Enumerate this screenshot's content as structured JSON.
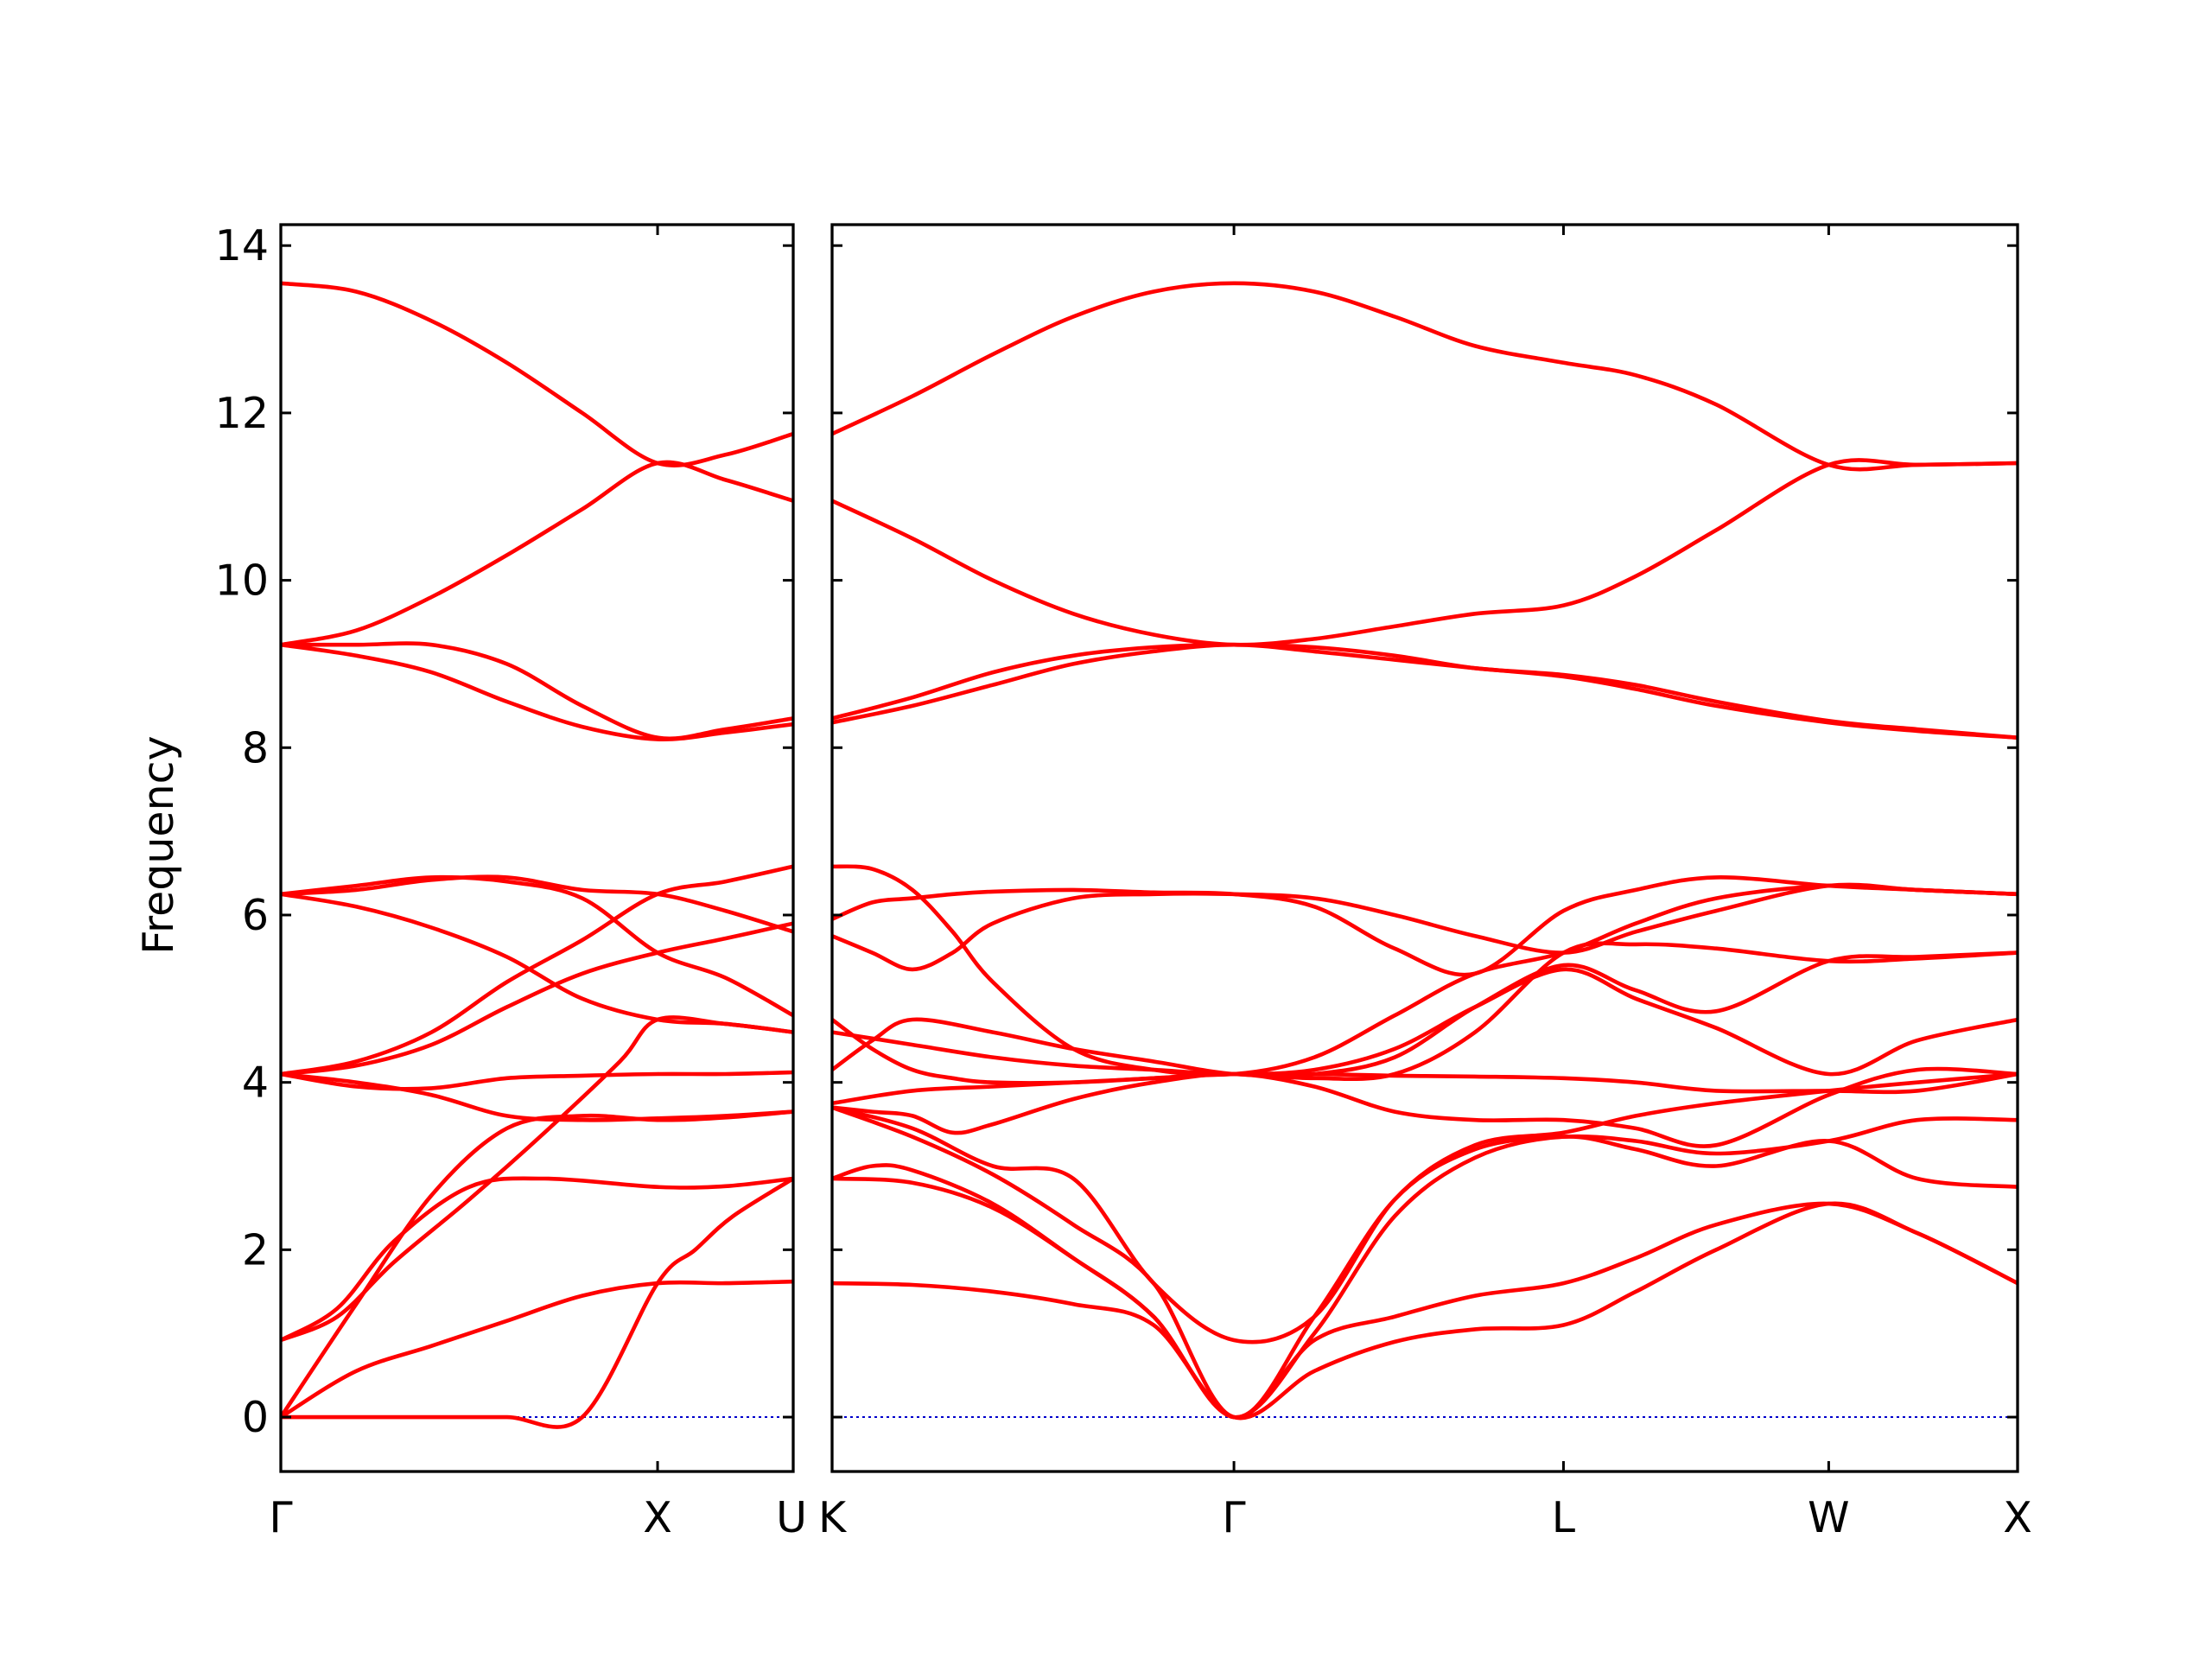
{
  "chart_data": {
    "type": "line",
    "title": "",
    "xlabel": "",
    "ylabel": "Frequency",
    "ylim": [
      -0.65,
      14.25
    ],
    "yticks": [
      0,
      2,
      4,
      6,
      8,
      10,
      12,
      14
    ],
    "grid": false,
    "legend": "none",
    "colors": {
      "bands": "#ff0000",
      "zero_line": "#0000cc",
      "frame": "#000000"
    },
    "panels": [
      {
        "x_range": [
          0,
          1.36
        ],
        "high_symmetry_points": [
          {
            "label": "Γ",
            "x": 0
          },
          {
            "label": "X",
            "x": 1.0
          },
          {
            "label": "U",
            "x": 1.36
          }
        ],
        "bands": [
          {
            "x": [
              0,
              0.2,
              0.4,
              0.6,
              0.8,
              1.0,
              1.18,
              1.36
            ],
            "y": [
              0,
              0.55,
              0.85,
              1.15,
              1.45,
              1.6,
              1.6,
              1.62
            ]
          },
          {
            "x": [
              0,
              0.2,
              0.4,
              0.6,
              0.8,
              1.0,
              1.18,
              1.36
            ],
            "y": [
              0,
              1.35,
              2.65,
              3.45,
              3.6,
              3.55,
              3.58,
              3.65
            ]
          },
          {
            "x": [
              0,
              0.15,
              0.3,
              0.5,
              0.7,
              0.9,
              1.0,
              1.18,
              1.36
            ],
            "y": [
              0.92,
              1.2,
              1.85,
              2.6,
              3.4,
              4.25,
              4.75,
              4.7,
              4.6
            ]
          },
          {
            "x": [
              0,
              0.15,
              0.3,
              0.5,
              0.7,
              1.0,
              1.18,
              1.36
            ],
            "y": [
              0.92,
              1.3,
              2.1,
              2.75,
              2.85,
              2.75,
              2.76,
              2.85
            ]
          },
          {
            "x": [
              0,
              0.2,
              0.4,
              0.6,
              0.8,
              1.0,
              1.1,
              1.2,
              1.36
            ],
            "y": [
              0,
              0,
              0,
              0,
              0,
              1.6,
              2.0,
              2.4,
              2.85
            ]
          },
          {
            "x": [
              0,
              0.2,
              0.4,
              0.6,
              0.8,
              1.0,
              1.18,
              1.36
            ],
            "y": [
              4.1,
              4.0,
              3.85,
              3.6,
              3.55,
              3.57,
              3.6,
              3.65
            ]
          },
          {
            "x": [
              0,
              0.2,
              0.4,
              0.6,
              0.8,
              1.0,
              1.18,
              1.36
            ],
            "y": [
              4.1,
              3.95,
              3.93,
              4.05,
              4.08,
              4.1,
              4.1,
              4.12
            ]
          },
          {
            "x": [
              0,
              0.2,
              0.4,
              0.6,
              0.8,
              1.0,
              1.18,
              1.36
            ],
            "y": [
              4.1,
              4.25,
              4.6,
              5.2,
              5.7,
              6.25,
              6.4,
              6.58
            ]
          },
          {
            "x": [
              0,
              0.2,
              0.4,
              0.6,
              0.8,
              1.0,
              1.18,
              1.36
            ],
            "y": [
              4.1,
              4.2,
              4.45,
              4.9,
              5.3,
              5.55,
              5.72,
              5.9
            ]
          },
          {
            "x": [
              0,
              0.2,
              0.4,
              0.6,
              0.8,
              1.0,
              1.18,
              1.36
            ],
            "y": [
              6.25,
              6.1,
              5.85,
              5.5,
              5.0,
              4.75,
              4.7,
              4.6
            ]
          },
          {
            "x": [
              0,
              0.2,
              0.4,
              0.6,
              0.8,
              1.0,
              1.18,
              1.36
            ],
            "y": [
              6.25,
              6.35,
              6.45,
              6.4,
              6.2,
              5.55,
              5.25,
              4.8
            ]
          },
          {
            "x": [
              0,
              0.2,
              0.4,
              0.6,
              0.8,
              1.0,
              1.18,
              1.36
            ],
            "y": [
              6.25,
              6.3,
              6.42,
              6.45,
              6.3,
              6.25,
              6.05,
              5.8
            ]
          },
          {
            "x": [
              0,
              0.2,
              0.4,
              0.6,
              0.8,
              1.0,
              1.18,
              1.36
            ],
            "y": [
              9.23,
              9.1,
              8.9,
              8.55,
              8.25,
              8.1,
              8.18,
              8.28
            ]
          },
          {
            "x": [
              0,
              0.2,
              0.4,
              0.6,
              0.8,
              1.0,
              1.18,
              1.36
            ],
            "y": [
              9.23,
              9.4,
              9.8,
              10.3,
              10.85,
              11.4,
              11.2,
              10.95
            ]
          },
          {
            "x": [
              0,
              0.2,
              0.4,
              0.6,
              0.8,
              1.0,
              1.18,
              1.36
            ],
            "y": [
              9.23,
              9.23,
              9.23,
              9.0,
              8.5,
              8.12,
              8.22,
              8.35
            ]
          },
          {
            "x": [
              0,
              0.2,
              0.4,
              0.6,
              0.8,
              1.0,
              1.18,
              1.36
            ],
            "y": [
              13.55,
              13.45,
              13.1,
              12.6,
              12.0,
              11.4,
              11.5,
              11.75
            ]
          }
        ]
      },
      {
        "x_range": [
          0,
          2.95
        ],
        "high_symmetry_points": [
          {
            "label": "K",
            "x": 0
          },
          {
            "label": "Γ",
            "x": 1.0
          },
          {
            "label": "L",
            "x": 1.82
          },
          {
            "label": "W",
            "x": 2.48
          },
          {
            "label": "X",
            "x": 2.95
          }
        ],
        "bands": [
          {
            "x": [
              0,
              0.2,
              0.4,
              0.6,
              0.8,
              1.0,
              1.2,
              1.4,
              1.6,
              1.82,
              2.0,
              2.2,
              2.48,
              2.7,
              2.95
            ],
            "y": [
              1.6,
              1.58,
              1.5,
              1.35,
              1.1,
              0,
              0.55,
              0.9,
              1.05,
              1.1,
              1.5,
              2.0,
              2.55,
              2.2,
              1.6
            ]
          },
          {
            "x": [
              0,
              0.2,
              0.4,
              0.6,
              0.8,
              1.0,
              1.2,
              1.4,
              1.6,
              1.82,
              2.0,
              2.2,
              2.48,
              2.7,
              2.95
            ],
            "y": [
              2.85,
              2.8,
              2.5,
              1.9,
              1.2,
              0,
              0.92,
              1.2,
              1.45,
              1.6,
              1.9,
              2.3,
              2.55,
              2.2,
              1.6
            ]
          },
          {
            "x": [
              0,
              0.1,
              0.2,
              0.4,
              0.6,
              0.8,
              1.0,
              1.2,
              1.4,
              1.6,
              1.82,
              2.0,
              2.2,
              2.48,
              2.7,
              2.95
            ],
            "y": [
              2.85,
              3.0,
              2.95,
              2.55,
              1.9,
              1.2,
              0,
              1.0,
              2.4,
              3.1,
              3.35,
              3.2,
              3.0,
              3.3,
              2.85,
              2.75
            ]
          },
          {
            "x": [
              0,
              0.2,
              0.4,
              0.6,
              0.8,
              1.0,
              1.2,
              1.4,
              1.6,
              1.82,
              2.0,
              2.2,
              2.48,
              2.7,
              2.95
            ],
            "y": [
              3.7,
              3.35,
              2.9,
              2.3,
              1.6,
              0,
              1.2,
              2.6,
              3.2,
              3.35,
              3.3,
              3.15,
              3.3,
              3.55,
              3.55
            ]
          },
          {
            "x": [
              0,
              0.2,
              0.4,
              0.6,
              0.8,
              1.0,
              1.2,
              1.4,
              1.6,
              1.82,
              2.0,
              2.2,
              2.48,
              2.7,
              2.95
            ],
            "y": [
              3.7,
              3.45,
              3.0,
              2.85,
              1.6,
              0.92,
              1.2,
              2.6,
              3.25,
              3.4,
              3.6,
              3.75,
              3.9,
              4.0,
              4.1
            ]
          },
          {
            "x": [
              0,
              0.1,
              0.2,
              0.3,
              0.4,
              0.6,
              0.8,
              1.0,
              1.2,
              1.4,
              1.6,
              1.82,
              2.0,
              2.2,
              2.48,
              2.7,
              2.95
            ],
            "y": [
              3.7,
              3.65,
              3.6,
              3.4,
              3.5,
              3.8,
              4.0,
              4.1,
              3.95,
              3.65,
              3.55,
              3.55,
              3.45,
              3.25,
              3.85,
              4.15,
              4.1
            ]
          },
          {
            "x": [
              0,
              0.2,
              0.4,
              0.6,
              0.8,
              1.0,
              1.2,
              1.4,
              1.6,
              1.82,
              2.0,
              2.2,
              2.48,
              2.7,
              2.95
            ],
            "y": [
              3.75,
              3.9,
              3.95,
              4.0,
              4.05,
              4.1,
              4.1,
              4.08,
              4.07,
              4.05,
              4.0,
              3.9,
              3.9,
              3.9,
              4.1
            ]
          },
          {
            "x": [
              0,
              0.1,
              0.2,
              0.4,
              0.6,
              0.8,
              1.0,
              1.2,
              1.4,
              1.6,
              1.82,
              2.0,
              2.2,
              2.48,
              2.7,
              2.95
            ],
            "y": [
              4.15,
              4.5,
              4.75,
              4.6,
              4.4,
              4.25,
              4.1,
              4.1,
              4.3,
              4.9,
              5.4,
              5.1,
              4.85,
              5.45,
              5.5,
              5.55
            ]
          },
          {
            "x": [
              0,
              0.2,
              0.4,
              0.6,
              0.8,
              1.0,
              1.2,
              1.4,
              1.6,
              1.82,
              2.0,
              2.2,
              2.48,
              2.7,
              2.95
            ],
            "y": [
              4.6,
              4.45,
              4.3,
              4.2,
              4.15,
              4.1,
              4.15,
              4.4,
              4.9,
              5.35,
              5.0,
              4.65,
              4.1,
              4.5,
              4.75
            ]
          },
          {
            "x": [
              0,
              0.1,
              0.2,
              0.3,
              0.4,
              0.6,
              0.8,
              1.0,
              1.2,
              1.4,
              1.6,
              1.82,
              2.0,
              2.2,
              2.48,
              2.7,
              2.95
            ],
            "y": [
              4.75,
              4.4,
              4.15,
              4.05,
              4.0,
              4.0,
              4.05,
              4.1,
              4.05,
              4.1,
              4.6,
              5.55,
              5.65,
              5.6,
              5.45,
              5.48,
              5.55
            ]
          },
          {
            "x": [
              0,
              0.1,
              0.2,
              0.3,
              0.4,
              0.6,
              0.8,
              1.0,
              1.2,
              1.4,
              1.6,
              1.82,
              2.0,
              2.2,
              2.48,
              2.7,
              2.95
            ],
            "y": [
              5.75,
              5.55,
              5.35,
              5.55,
              5.9,
              6.2,
              6.25,
              6.25,
              6.2,
              6.0,
              5.75,
              5.55,
              5.8,
              6.05,
              6.35,
              6.3,
              6.25
            ]
          },
          {
            "x": [
              0,
              0.1,
              0.2,
              0.3,
              0.4,
              0.6,
              0.8,
              1.0,
              1.2,
              1.4,
              1.6,
              1.82,
              2.0,
              2.2,
              2.48,
              2.7,
              2.95
            ],
            "y": [
              5.95,
              6.15,
              6.2,
              6.25,
              6.28,
              6.3,
              6.27,
              6.25,
              6.1,
              5.6,
              5.3,
              6.05,
              6.3,
              6.45,
              6.35,
              6.3,
              6.25
            ]
          },
          {
            "x": [
              0,
              0.1,
              0.2,
              0.3,
              0.4,
              0.6,
              0.8,
              1.0,
              1.2,
              1.4,
              1.6,
              1.82,
              2.0,
              2.2,
              2.48,
              2.7,
              2.95
            ],
            "y": [
              6.58,
              6.55,
              6.3,
              5.8,
              5.2,
              4.4,
              4.15,
              4.1,
              4.3,
              4.8,
              5.3,
              5.55,
              5.9,
              6.2,
              6.35,
              6.3,
              6.25
            ]
          },
          {
            "x": [
              0,
              0.2,
              0.4,
              0.6,
              0.8,
              1.0,
              1.2,
              1.4,
              1.6,
              1.82,
              2.0,
              2.2,
              2.48,
              2.7,
              2.95
            ],
            "y": [
              8.3,
              8.5,
              8.75,
              9.0,
              9.15,
              9.23,
              9.15,
              9.05,
              8.95,
              8.85,
              8.7,
              8.5,
              8.3,
              8.2,
              8.12
            ]
          },
          {
            "x": [
              0,
              0.2,
              0.4,
              0.6,
              0.8,
              1.0,
              1.2,
              1.4,
              1.6,
              1.82,
              2.0,
              2.2,
              2.48,
              2.7,
              2.95
            ],
            "y": [
              8.35,
              8.6,
              8.9,
              9.1,
              9.2,
              9.23,
              9.2,
              9.1,
              8.95,
              8.87,
              8.75,
              8.55,
              8.32,
              8.22,
              8.12
            ]
          },
          {
            "x": [
              0,
              0.2,
              0.4,
              0.6,
              0.8,
              1.0,
              1.2,
              1.4,
              1.6,
              1.82,
              2.0,
              2.2,
              2.48,
              2.7,
              2.95
            ],
            "y": [
              10.95,
              10.5,
              10.0,
              9.6,
              9.35,
              9.23,
              9.3,
              9.45,
              9.6,
              9.7,
              10.05,
              10.6,
              11.38,
              11.38,
              11.4
            ]
          },
          {
            "x": [
              0,
              0.2,
              0.4,
              0.6,
              0.8,
              1.0,
              1.2,
              1.4,
              1.6,
              1.82,
              2.0,
              2.2,
              2.48,
              2.7,
              2.95
            ],
            "y": [
              11.75,
              12.2,
              12.7,
              13.15,
              13.45,
              13.55,
              13.45,
              13.15,
              12.8,
              12.6,
              12.45,
              12.1,
              11.38,
              11.38,
              11.4
            ]
          }
        ]
      }
    ]
  }
}
